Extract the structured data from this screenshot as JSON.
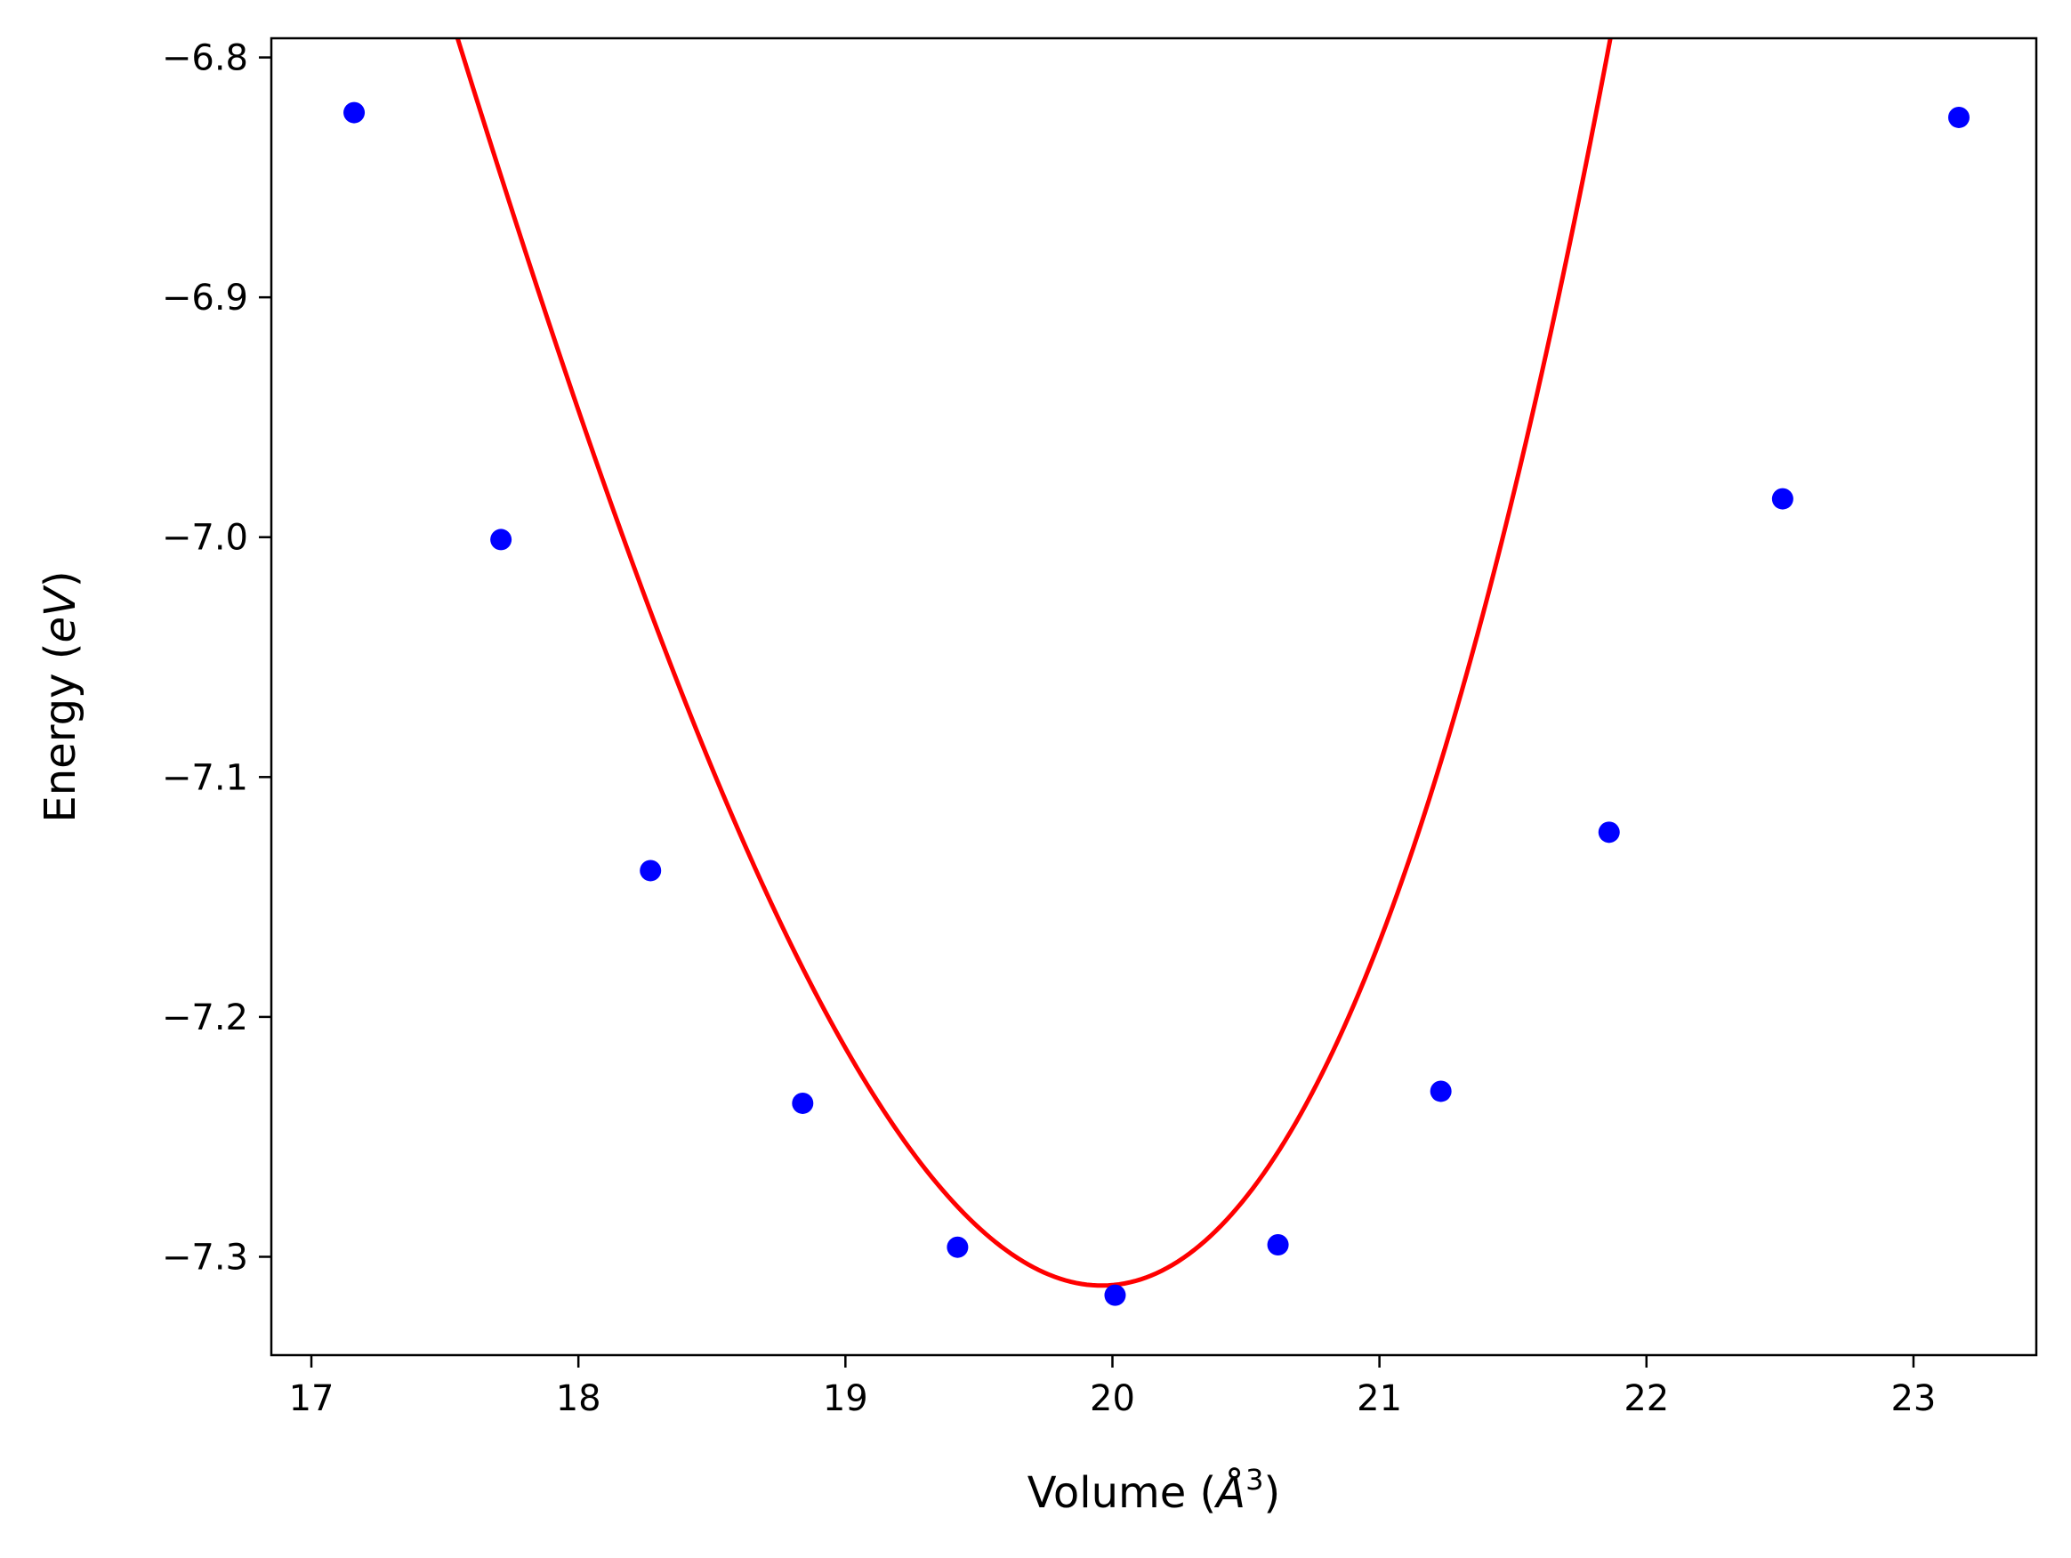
{
  "chart_data": {
    "type": "scatter",
    "xlabel": "Volume (Å³)",
    "xlabel_parts": {
      "prefix": "Volume (",
      "symbol": "Å",
      "sup": "3",
      "suffix": ")"
    },
    "ylabel": "Energy (eV)",
    "ylabel_parts": {
      "prefix": "Energy (",
      "unit": "eV",
      "suffix": ")"
    },
    "xlim": [
      16.85,
      23.46
    ],
    "ylim": [
      -7.341,
      -6.792
    ],
    "x_ticks": [
      17,
      18,
      19,
      20,
      21,
      22,
      23
    ],
    "x_tick_labels": [
      "17",
      "18",
      "19",
      "20",
      "21",
      "22",
      "23"
    ],
    "y_ticks": [
      -7.3,
      -7.2,
      -7.1,
      -7.0,
      -6.9,
      -6.8
    ],
    "y_tick_labels": [
      "−7.3",
      "−7.2",
      "−7.1",
      "−7.0",
      "−6.9",
      "−6.8"
    ],
    "grid": false,
    "legend": "none",
    "series": [
      {
        "kind": "points",
        "color": "#0000ff",
        "x": [
          17.16,
          17.71,
          18.27,
          18.84,
          19.42,
          20.01,
          20.62,
          21.23,
          21.86,
          22.51,
          23.17
        ],
        "y": [
          -6.823,
          -7.001,
          -7.139,
          -7.236,
          -7.296,
          -7.316,
          -7.295,
          -7.231,
          -7.123,
          -6.984,
          -6.825
        ]
      },
      {
        "kind": "fit-curve",
        "color": "#ff0000",
        "fit": {
          "vmin": 19.96,
          "emin": -7.312,
          "a": 0.1195,
          "b": 0.0125
        },
        "x_range": [
          17.16,
          23.17
        ]
      }
    ]
  }
}
